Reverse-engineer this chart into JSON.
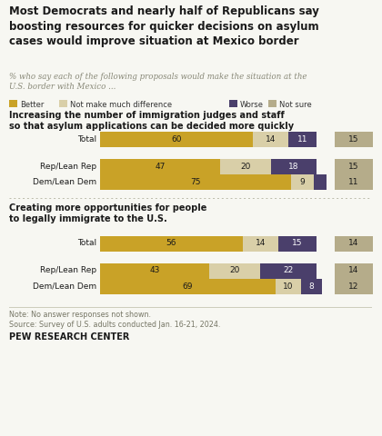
{
  "title": "Most Democrats and nearly half of Republicans say\nboosting resources for quicker decisions on asylum\ncases would improve situation at Mexico border",
  "subtitle": "% who say each of the following proposals would make the situation at the\nU.S. border with Mexico ...",
  "legend_items": [
    "Better",
    "Not make much difference",
    "Worse",
    "Not sure"
  ],
  "colors": {
    "better": "#C9A227",
    "not_much": "#D9CFA8",
    "worse": "#4A3F6B",
    "not_sure": "#B5AC8A"
  },
  "section1_title": "Increasing the number of immigration judges and staff\nso that asylum applications can be decided more quickly",
  "section2_title": "Creating more opportunities for people\nto legally immigrate to the U.S.",
  "rows": [
    {
      "label": "Total",
      "better": 60,
      "not_much": 14,
      "worse": 11,
      "not_sure": 15
    },
    {
      "label": "Rep/Lean Rep",
      "better": 47,
      "not_much": 20,
      "worse": 18,
      "not_sure": 15
    },
    {
      "label": "Dem/Lean Dem",
      "better": 75,
      "not_much": 9,
      "worse": 5,
      "not_sure": 11
    },
    {
      "label": "Total",
      "better": 56,
      "not_much": 14,
      "worse": 15,
      "not_sure": 14
    },
    {
      "label": "Rep/Lean Rep",
      "better": 43,
      "not_much": 20,
      "worse": 22,
      "not_sure": 14
    },
    {
      "label": "Dem/Lean Dem",
      "better": 69,
      "not_much": 10,
      "worse": 8,
      "not_sure": 12
    }
  ],
  "note": "Note: No answer responses not shown.",
  "source": "Source: Survey of U.S. adults conducted Jan. 16-21, 2024.",
  "branding": "PEW RESEARCH CENTER",
  "bg_color": "#F7F7F2",
  "text_dark": "#1a1a1a",
  "text_mid": "#555555",
  "sep_color": "#BBBBAA"
}
